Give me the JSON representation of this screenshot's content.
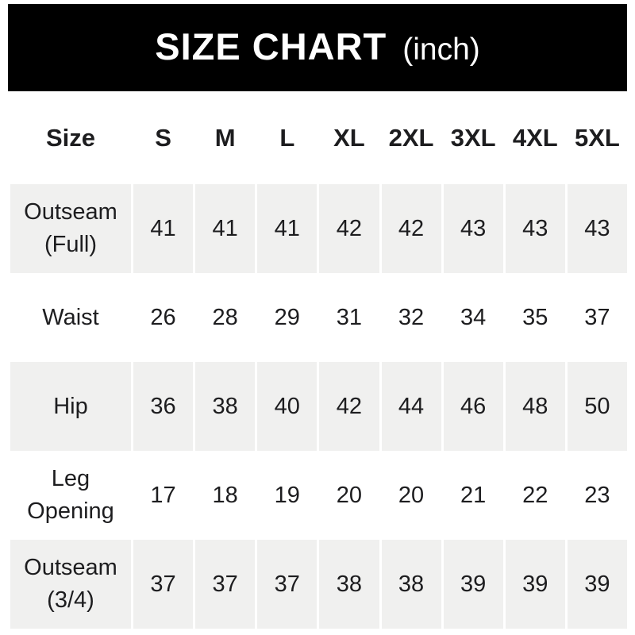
{
  "header": {
    "title": "SIZE CHART",
    "unit": "(inch)",
    "bg_color": "#000000",
    "text_color": "#ffffff"
  },
  "table": {
    "stripe_color": "#f0f0ef",
    "text_color": "#1d1d1f",
    "columns": [
      "Size",
      "S",
      "M",
      "L",
      "XL",
      "2XL",
      "3XL",
      "4XL",
      "5XL"
    ],
    "rows": [
      {
        "label": "Outseam (Full)",
        "values": [
          "41",
          "41",
          "41",
          "42",
          "42",
          "43",
          "43",
          "43"
        ]
      },
      {
        "label": "Waist",
        "values": [
          "26",
          "28",
          "29",
          "31",
          "32",
          "34",
          "35",
          "37"
        ]
      },
      {
        "label": "Hip",
        "values": [
          "36",
          "38",
          "40",
          "42",
          "44",
          "46",
          "48",
          "50"
        ]
      },
      {
        "label": "Leg Opening",
        "values": [
          "17",
          "18",
          "19",
          "20",
          "20",
          "21",
          "22",
          "23"
        ]
      },
      {
        "label": "Outseam (3/4)",
        "values": [
          "37",
          "37",
          "37",
          "38",
          "38",
          "39",
          "39",
          "39"
        ]
      }
    ]
  },
  "chart_data": {
    "type": "table",
    "title": "SIZE CHART (inch)",
    "columns": [
      "Size",
      "S",
      "M",
      "L",
      "XL",
      "2XL",
      "3XL",
      "4XL",
      "5XL"
    ],
    "rows": [
      [
        "Outseam (Full)",
        41,
        41,
        41,
        42,
        42,
        43,
        43,
        43
      ],
      [
        "Waist",
        26,
        28,
        29,
        31,
        32,
        34,
        35,
        37
      ],
      [
        "Hip",
        36,
        38,
        40,
        42,
        44,
        46,
        48,
        50
      ],
      [
        "Leg Opening",
        17,
        18,
        19,
        20,
        20,
        21,
        22,
        23
      ],
      [
        "Outseam (3/4)",
        37,
        37,
        37,
        38,
        38,
        39,
        39,
        39
      ]
    ]
  }
}
